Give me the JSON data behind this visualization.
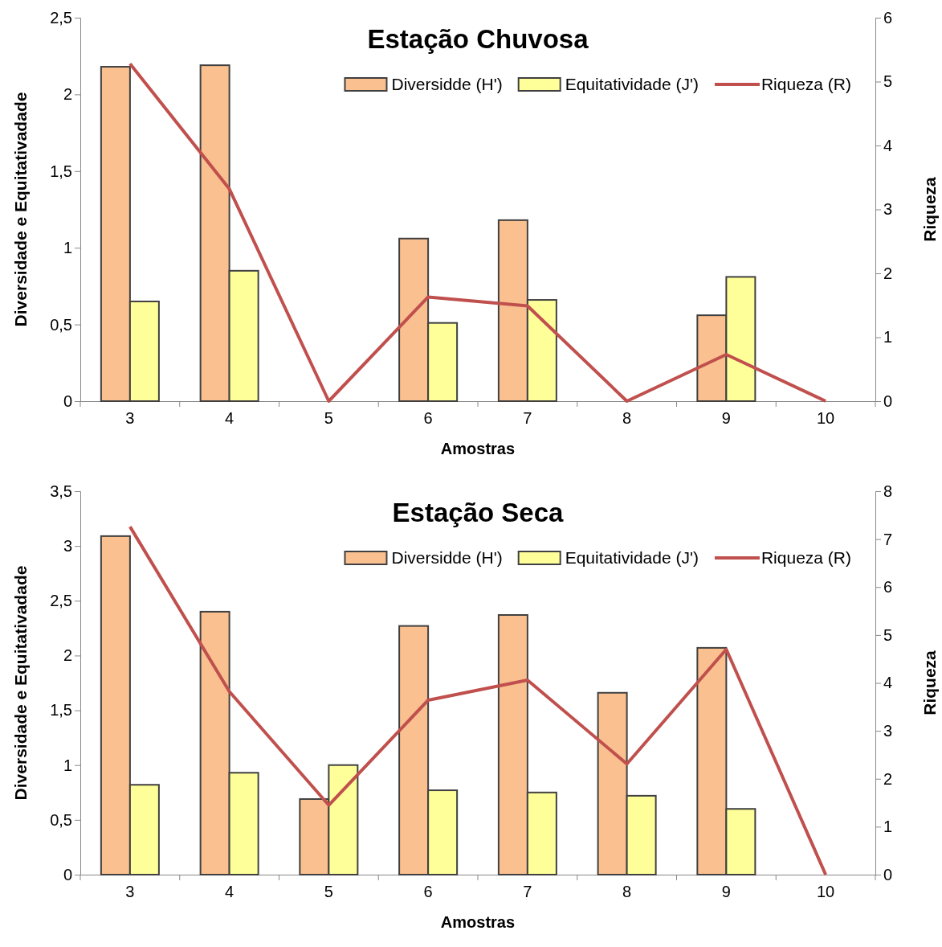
{
  "chart_data": [
    {
      "type": "bar",
      "title": "Estação Chuvosa",
      "xlabel": "Amostras",
      "ylabel": "Diversidade e Equitativadade",
      "y2label": "Riqueza",
      "categories": [
        "3",
        "4",
        "5",
        "6",
        "7",
        "8",
        "9",
        "10"
      ],
      "series": [
        {
          "name": "Diversidde (H')",
          "color": "#fac090",
          "values": [
            2.18,
            2.19,
            null,
            1.06,
            1.18,
            null,
            0.56,
            null
          ]
        },
        {
          "name": "Equitatividade (J')",
          "color": "#ffff99",
          "values": [
            0.65,
            0.85,
            null,
            0.51,
            0.66,
            null,
            0.81,
            null
          ]
        },
        {
          "name": "Riqueza (R)",
          "type": "line",
          "axis": "y2",
          "color": "#c0504d",
          "values": [
            5.28,
            3.32,
            0,
            1.63,
            1.49,
            0,
            0.73,
            0
          ]
        }
      ],
      "ylim": [
        0,
        2.5
      ],
      "yticks": [
        0,
        {
          "value": 0.5,
          "label": "0,5"
        },
        1,
        {
          "value": 1.5,
          "label": "1,5"
        },
        2,
        {
          "value": 2.5,
          "label": "2,5"
        }
      ],
      "y2lim": [
        0,
        6
      ],
      "y2ticks": [
        0,
        1,
        2,
        3,
        4,
        5,
        6
      ],
      "legend": "top right",
      "grid": false,
      "marker": "none"
    },
    {
      "type": "bar",
      "title": "Estação Seca",
      "xlabel": "Amostras",
      "ylabel": "Diversidade e Equitativadade",
      "y2label": "Riqueza",
      "categories": [
        "3",
        "4",
        "5",
        "6",
        "7",
        "8",
        "9",
        "10"
      ],
      "series": [
        {
          "name": "Diversidde (H')",
          "color": "#fac090",
          "values": [
            3.09,
            2.4,
            0.69,
            2.27,
            2.37,
            1.66,
            2.07,
            null
          ]
        },
        {
          "name": "Equitatividade (J')",
          "color": "#ffff99",
          "values": [
            0.82,
            0.93,
            1.0,
            0.77,
            0.75,
            0.72,
            0.6,
            null
          ]
        },
        {
          "name": "Riqueza (R)",
          "type": "line",
          "axis": "y2",
          "color": "#c0504d",
          "values": [
            7.26,
            3.82,
            1.45,
            3.64,
            4.06,
            2.31,
            4.7,
            0
          ]
        }
      ],
      "ylim": [
        0,
        3.5
      ],
      "yticks": [
        0,
        {
          "value": 0.5,
          "label": "0,5"
        },
        1,
        {
          "value": 1.5,
          "label": "1,5"
        },
        2,
        {
          "value": 2.5,
          "label": "2,5"
        },
        3,
        {
          "value": 3.5,
          "label": "3,5"
        }
      ],
      "y2lim": [
        0,
        8
      ],
      "y2ticks": [
        0,
        1,
        2,
        3,
        4,
        5,
        6,
        7,
        8
      ],
      "legend": "top right",
      "grid": false,
      "marker": "none"
    }
  ]
}
